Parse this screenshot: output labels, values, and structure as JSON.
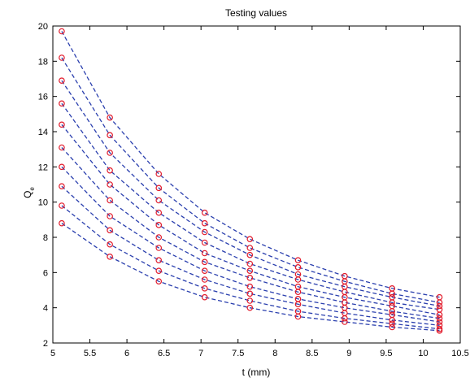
{
  "chart_data": {
    "type": "scatter",
    "title": "Testing values",
    "xlabel": "t (mm)",
    "ylabel": "Q",
    "ylabel_subscript": "e",
    "xlim": [
      5,
      10.5
    ],
    "ylim": [
      2,
      20
    ],
    "xticks": [
      "5",
      "5.5",
      "6",
      "6.5",
      "7",
      "7.5",
      "8",
      "8.5",
      "9",
      "9.5",
      "10",
      "10.5"
    ],
    "yticks": [
      "2",
      "4",
      "6",
      "8",
      "10",
      "12",
      "14",
      "16",
      "18",
      "20"
    ],
    "grid": false,
    "line_color": "#2a3fae",
    "marker_color": "#e21b2b",
    "x": [
      5.12,
      5.77,
      6.43,
      7.05,
      7.66,
      8.31,
      8.94,
      9.58,
      10.22
    ],
    "series": [
      {
        "values": [
          19.7,
          14.8,
          11.6,
          9.4,
          7.9,
          6.7,
          5.8,
          5.1,
          4.6
        ]
      },
      {
        "values": [
          18.2,
          13.8,
          10.8,
          8.8,
          7.4,
          6.3,
          5.5,
          4.8,
          4.3
        ]
      },
      {
        "values": [
          16.9,
          12.8,
          10.1,
          8.3,
          7.0,
          5.9,
          5.2,
          4.6,
          4.1
        ]
      },
      {
        "values": [
          15.6,
          11.8,
          9.4,
          7.7,
          6.5,
          5.6,
          4.9,
          4.3,
          3.9
        ]
      },
      {
        "values": [
          14.4,
          11.0,
          8.7,
          7.1,
          6.1,
          5.2,
          4.6,
          4.1,
          3.6
        ]
      },
      {
        "values": [
          13.1,
          10.1,
          8.0,
          6.6,
          5.7,
          4.9,
          4.3,
          3.8,
          3.4
        ]
      },
      {
        "values": [
          12.0,
          9.2,
          7.4,
          6.1,
          5.2,
          4.5,
          4.0,
          3.6,
          3.2
        ]
      },
      {
        "values": [
          10.9,
          8.4,
          6.7,
          5.6,
          4.8,
          4.2,
          3.7,
          3.3,
          3.0
        ]
      },
      {
        "values": [
          9.8,
          7.6,
          6.1,
          5.1,
          4.4,
          3.8,
          3.4,
          3.1,
          2.8
        ]
      },
      {
        "values": [
          8.8,
          6.9,
          5.5,
          4.6,
          4.0,
          3.5,
          3.2,
          2.9,
          2.7
        ]
      }
    ]
  }
}
